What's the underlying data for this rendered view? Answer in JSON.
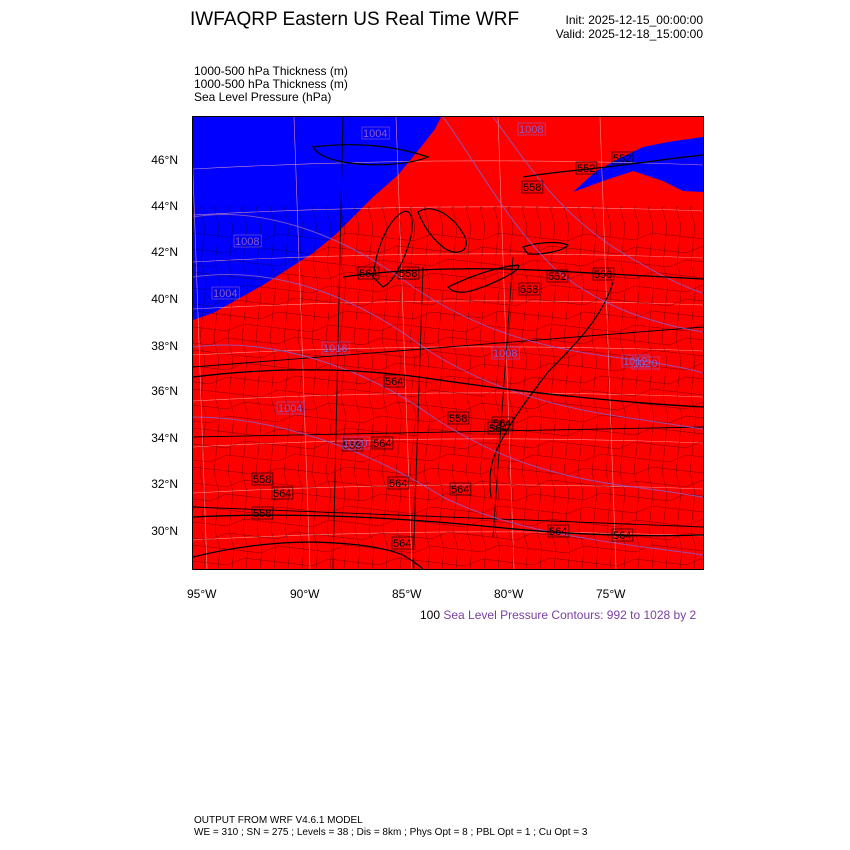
{
  "header": {
    "title": "IWFAQRP Eastern US Real Time WRF",
    "init": "Init: 2025-12-15_00:00:00",
    "valid": "Valid: 2025-12-18_15:00:00"
  },
  "fields": [
    "1000-500 hPa Thickness   (m)",
    "1000-500 hPa Thickness   (m)",
    "Sea Level Pressure   (hPa)"
  ],
  "lat_labels": [
    "46°N",
    "44°N",
    "42°N",
    "40°N",
    "38°N",
    "36°N",
    "34°N",
    "32°N",
    "30°N"
  ],
  "lon_labels": [
    "95°W",
    "90°W",
    "85°W",
    "80°W",
    "75°W"
  ],
  "map": {
    "cold_color": "#0000ff",
    "warm_color": "#ff0000",
    "pressure_line_color": "#8a5cc6",
    "thickness_labels": [
      "552",
      "558",
      "558",
      "564",
      "552",
      "558",
      "558",
      "564",
      "558",
      "564",
      "564",
      "564",
      "564",
      "564",
      "558",
      "564",
      "552",
      "558",
      "564",
      "564",
      "558",
      "564"
    ],
    "pressure_labels": [
      "1008",
      "1004",
      "1008",
      "1004",
      "1012",
      "1004",
      "1016",
      "1008",
      "1020",
      "1020"
    ]
  },
  "contour_info": {
    "prefix": "100",
    "text": "Sea Level Pressure Contours: 992 to 1028 by 2"
  },
  "footer": {
    "line1": "OUTPUT FROM WRF V4.6.1 MODEL",
    "line2": "WE = 310 ; SN = 275 ; Levels = 38 ; Dis = 8km ; Phys Opt = 8 ; PBL Opt = 1 ; Cu Opt = 3"
  }
}
